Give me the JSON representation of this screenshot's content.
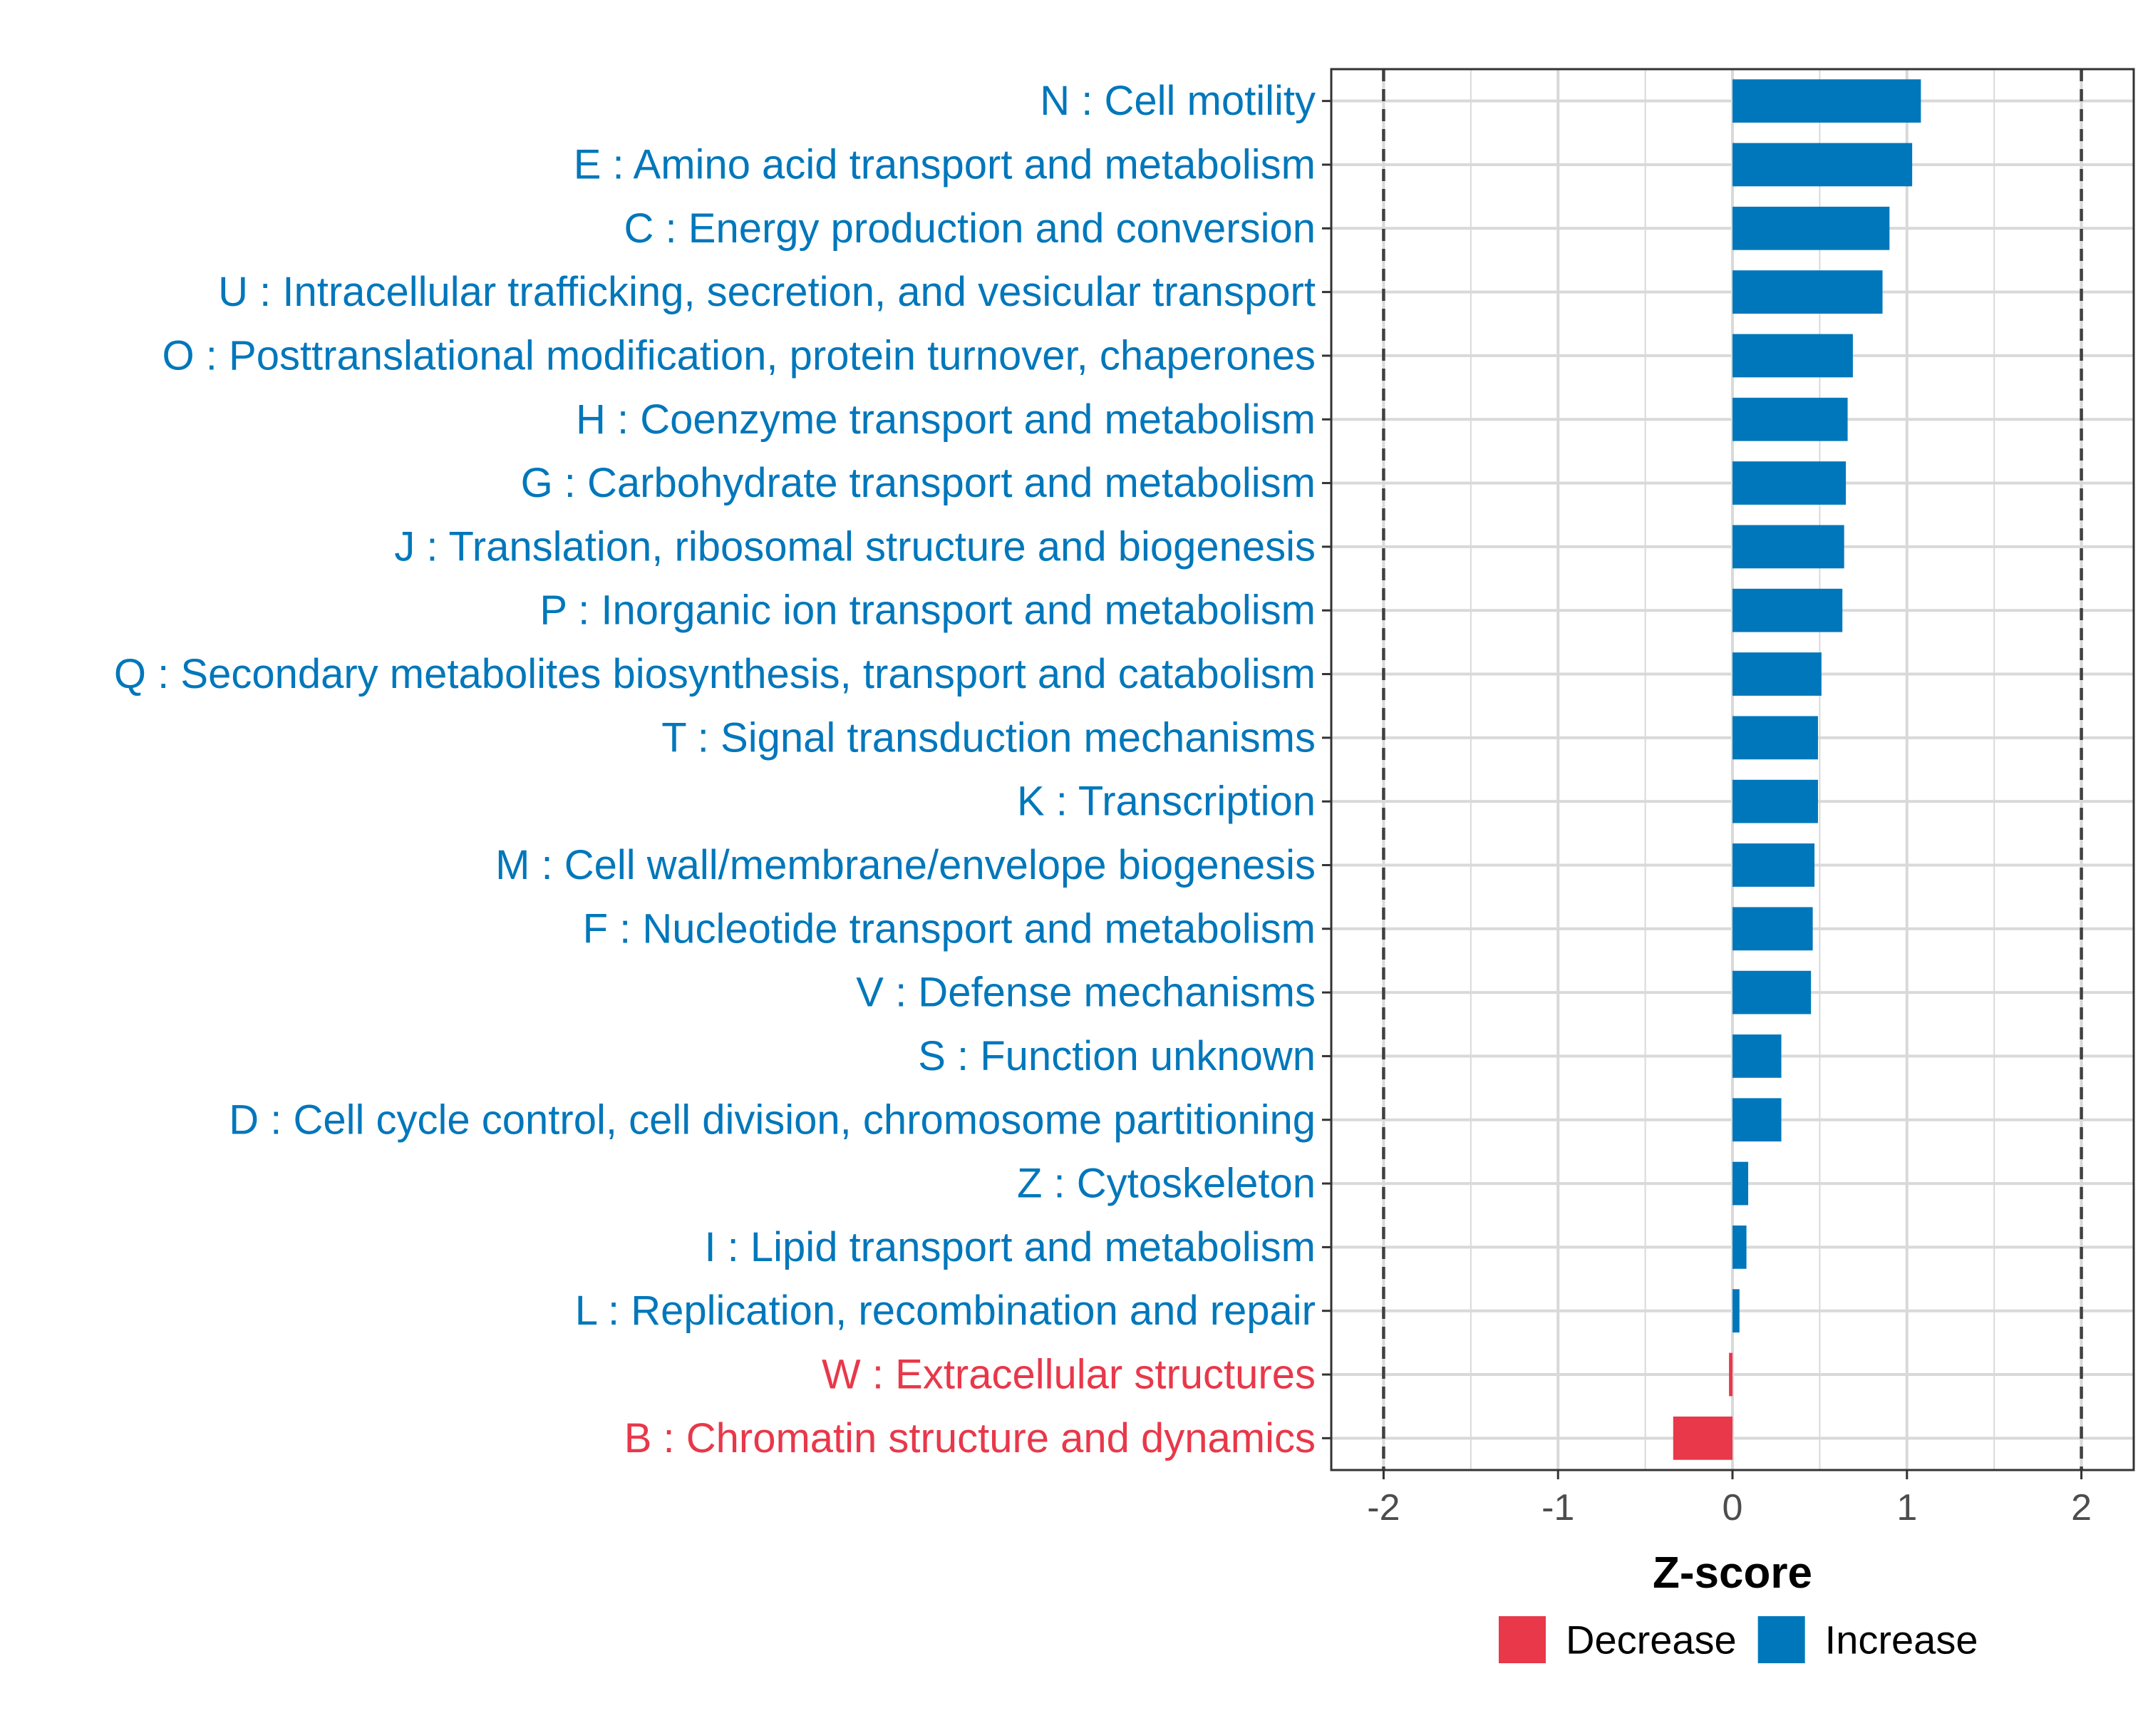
{
  "colors": {
    "increase": "#0077BB",
    "decrease": "#E8384A",
    "grid": "#D9D9D9",
    "ref_line": "#404040",
    "panel_border": "#333333"
  },
  "chart_data": {
    "type": "bar",
    "orientation": "horizontal",
    "xlabel": "Z-score",
    "xlim": [
      -2.3,
      2.3
    ],
    "xticks": [
      -2,
      -1,
      0,
      1,
      2
    ],
    "xtick_labels": [
      "-2",
      "-1",
      "0",
      "1",
      "2"
    ],
    "reference_lines": [
      -2,
      2
    ],
    "grid": true,
    "legend_position": "bottom",
    "legend": [
      {
        "key": "decrease",
        "label": "Decrease"
      },
      {
        "key": "increase",
        "label": "Increase"
      }
    ],
    "categories": [
      "N : Cell motility",
      "E : Amino acid transport and metabolism",
      "C : Energy production and conversion",
      "U : Intracellular trafficking, secretion, and vesicular transport",
      "O : Posttranslational modification, protein turnover, chaperones",
      "H : Coenzyme transport and metabolism",
      "G : Carbohydrate transport and metabolism",
      "J : Translation, ribosomal structure and biogenesis",
      "P : Inorganic ion transport and metabolism",
      "Q : Secondary metabolites biosynthesis, transport and catabolism",
      "T : Signal transduction mechanisms",
      "K : Transcription",
      "M : Cell wall/membrane/envelope biogenesis",
      "F : Nucleotide transport and metabolism",
      "V : Defense mechanisms",
      "S : Function unknown",
      "D : Cell cycle control, cell division, chromosome partitioning",
      "Z : Cytoskeleton",
      "I : Lipid transport and metabolism",
      "L : Replication, recombination and repair",
      "W : Extracellular structures",
      "B : Chromatin structure and dynamics"
    ],
    "values": [
      1.08,
      1.03,
      0.9,
      0.86,
      0.69,
      0.66,
      0.65,
      0.64,
      0.63,
      0.51,
      0.49,
      0.49,
      0.47,
      0.46,
      0.45,
      0.28,
      0.28,
      0.09,
      0.08,
      0.04,
      -0.02,
      -0.34
    ],
    "direction": [
      "increase",
      "increase",
      "increase",
      "increase",
      "increase",
      "increase",
      "increase",
      "increase",
      "increase",
      "increase",
      "increase",
      "increase",
      "increase",
      "increase",
      "increase",
      "increase",
      "increase",
      "increase",
      "increase",
      "increase",
      "decrease",
      "decrease"
    ]
  }
}
